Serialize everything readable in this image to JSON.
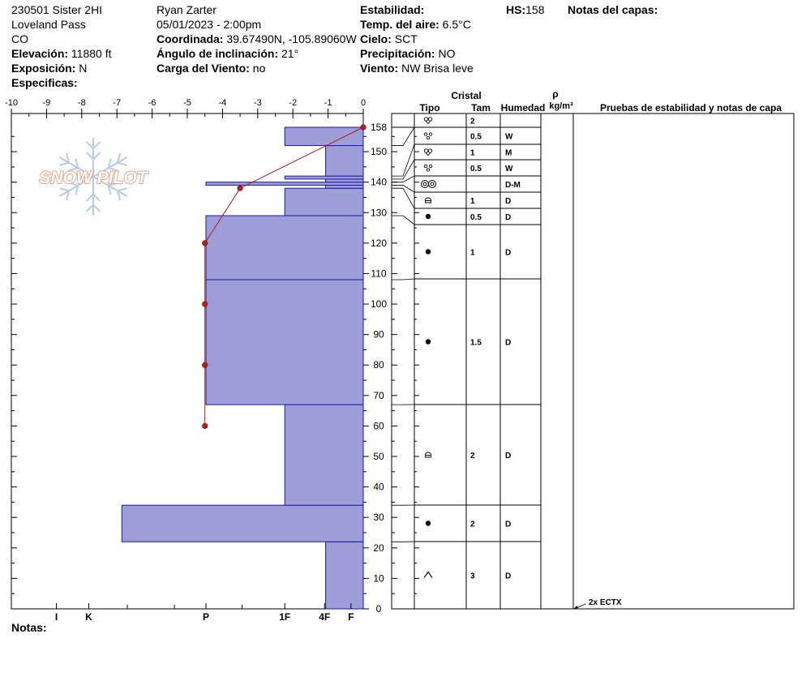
{
  "header": {
    "site": "230501 Sister 2HI",
    "location": "Loveland Pass",
    "state": "CO",
    "elevation_label": "Elevación:",
    "elevation_value": "11880 ft",
    "aspect_label": "Exposición:",
    "aspect_value": "N",
    "specifics_label": "Especificas:",
    "observer": "Ryan Zarter",
    "datetime": "05/01/2023 - 2:00pm",
    "coord_label": "Coordinada:",
    "coord_value": "39.67490N, -105.89060W",
    "slope_label": "Ángulo de inclinación:",
    "slope_value": "21°",
    "wind_load_label": "Carga del Viento:",
    "wind_load_value": "no",
    "stability_label": "Estabilidad:",
    "air_temp_label": "Temp. del aire:",
    "air_temp_value": "6.5°C",
    "sky_label": "Cielo:",
    "sky_value": "SCT",
    "precip_label": "Precipitación:",
    "precip_value": "NO",
    "wind_label": "Viento:",
    "wind_value": "NW Brisa leve",
    "hs_label": "HS:",
    "hs_value": "158",
    "layer_notes_label": "Notas del capas:",
    "notes_label": "Notas:"
  },
  "logo": {
    "text": "SNOW PILOT"
  },
  "columns": {
    "crystal": "Cristal",
    "type": "Tipo",
    "size": "Tam",
    "moisture": "Humedad",
    "rho": "ρ",
    "density_unit": "kg/m³",
    "tests": "Pruebas de estabilidad y notas de capa"
  },
  "colors": {
    "hardness_fill": "#9d9dd8",
    "hardness_stroke": "#1a1aa8",
    "temp_line": "#b0201e",
    "temp_point": "#b0201e",
    "logo_orange": "#e8a58a",
    "logo_blue": "#b8cbe0"
  },
  "chart_data": {
    "type": "snow_profile",
    "temperature_axis": {
      "label_ticks": [
        "-10",
        "-9",
        "-8",
        "-7",
        "-6",
        "-5",
        "-4",
        "-3",
        "-2",
        "-1",
        "0"
      ],
      "range": [
        -10,
        0
      ]
    },
    "height_axis": {
      "range": [
        0,
        158
      ],
      "ticks": [
        "0",
        "10",
        "20",
        "30",
        "40",
        "50",
        "60",
        "70",
        "80",
        "90",
        "100",
        "110",
        "120",
        "130",
        "140",
        "150",
        "158"
      ]
    },
    "hardness_ticks": [
      "I",
      "K",
      "P",
      "1F",
      "4F",
      "F"
    ],
    "hardness_layers": [
      {
        "bottom": 0,
        "top": 22,
        "hardness": 1.07
      },
      {
        "bottom": 22,
        "top": 34,
        "hardness": 6.86
      },
      {
        "bottom": 34,
        "top": 67,
        "hardness": 2.23
      },
      {
        "bottom": 67,
        "top": 108,
        "hardness": 4.47
      },
      {
        "bottom": 108,
        "top": 129,
        "hardness": 4.47
      },
      {
        "bottom": 129,
        "top": 138,
        "hardness": 2.23
      },
      {
        "bottom": 138,
        "top": 139,
        "hardness": 1.07
      },
      {
        "bottom": 139,
        "top": 140,
        "hardness": 4.47
      },
      {
        "bottom": 140,
        "top": 141,
        "hardness": 1.07
      },
      {
        "bottom": 141,
        "top": 142,
        "hardness": 2.23
      },
      {
        "bottom": 142,
        "top": 152,
        "hardness": 1.07
      },
      {
        "bottom": 152,
        "top": 158,
        "hardness": 2.23
      }
    ],
    "temperature_profile": [
      {
        "height": 158,
        "temp": 0
      },
      {
        "height": 138,
        "temp": -3.5
      },
      {
        "height": 120,
        "temp": -4.5
      },
      {
        "height": 100,
        "temp": -4.5
      },
      {
        "height": 80,
        "temp": -4.5
      },
      {
        "height": 60,
        "temp": -4.5
      }
    ],
    "layers": [
      {
        "top": 158,
        "bottom": 152,
        "type": "ppgp",
        "size": "2",
        "moisture": ""
      },
      {
        "top": 152,
        "bottom": 142,
        "type": "mf",
        "size": "0.5",
        "moisture": "W"
      },
      {
        "top": 142,
        "bottom": 141,
        "type": "ppgp",
        "size": "1",
        "moisture": "M"
      },
      {
        "top": 141,
        "bottom": 140,
        "type": "mf",
        "size": "0.5",
        "moisture": "W"
      },
      {
        "top": 140,
        "bottom": 139,
        "type": "mfcr",
        "size": "",
        "moisture": "D-M"
      },
      {
        "top": 139,
        "bottom": 138,
        "type": "fcxr",
        "size": "1",
        "moisture": "D"
      },
      {
        "top": 138,
        "bottom": 129,
        "type": "rg",
        "size": "0.5",
        "moisture": "D"
      },
      {
        "top": 129,
        "bottom": 108,
        "type": "rg",
        "size": "1",
        "moisture": "D"
      },
      {
        "top": 108,
        "bottom": 67,
        "type": "rg",
        "size": "1.5",
        "moisture": "D"
      },
      {
        "top": 67,
        "bottom": 34,
        "type": "fcxr",
        "size": "2",
        "moisture": "D"
      },
      {
        "top": 34,
        "bottom": 22,
        "type": "rg",
        "size": "2",
        "moisture": "D"
      },
      {
        "top": 22,
        "bottom": 0,
        "type": "dh",
        "size": "3",
        "moisture": "D"
      }
    ],
    "test_notes": [
      {
        "height": 0,
        "text": "2x ECTX"
      }
    ]
  }
}
